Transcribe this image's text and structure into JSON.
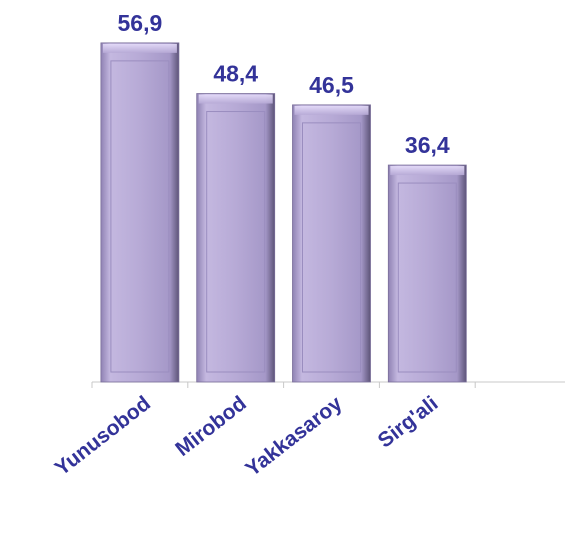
{
  "chart_data": {
    "type": "bar",
    "categories": [
      "Yunusobod",
      "Mirobod",
      "Yakkasaroy",
      "Sirg'ali",
      null
    ],
    "values": [
      56.9,
      48.4,
      46.5,
      36.4,
      null
    ],
    "value_labels": [
      "56,9",
      "48,4",
      "46,5",
      "36,4",
      null
    ],
    "color": "#b3a6d3"
  }
}
